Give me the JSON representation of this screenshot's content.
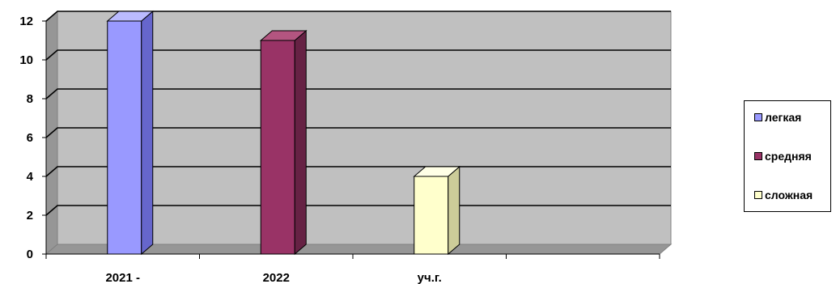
{
  "chart_data": {
    "type": "bar",
    "categories": [
      "2021 -",
      "2022",
      "уч.г.",
      ""
    ],
    "ylim": [
      0,
      12
    ],
    "yticks": [
      0,
      2,
      4,
      6,
      8,
      10,
      12
    ],
    "grid": true,
    "legend_position": "right",
    "series": [
      {
        "name": "легкая",
        "values": [
          12,
          null,
          null,
          null
        ],
        "color": "#9999ff",
        "side_color": "#6666cc",
        "top_color": "#bbbbff"
      },
      {
        "name": "средняя",
        "values": [
          null,
          11,
          null,
          null
        ],
        "color": "#993366",
        "side_color": "#662244",
        "top_color": "#b35580"
      },
      {
        "name": "сложная",
        "values": [
          null,
          null,
          4,
          null
        ],
        "color": "#ffffcc",
        "side_color": "#cccc99",
        "top_color": "#ffffe6"
      }
    ]
  },
  "legend": {
    "items": [
      {
        "label": "легкая",
        "color": "#9999ff"
      },
      {
        "label": "средняя",
        "color": "#993366"
      },
      {
        "label": "сложная",
        "color": "#ffffcc"
      }
    ]
  }
}
